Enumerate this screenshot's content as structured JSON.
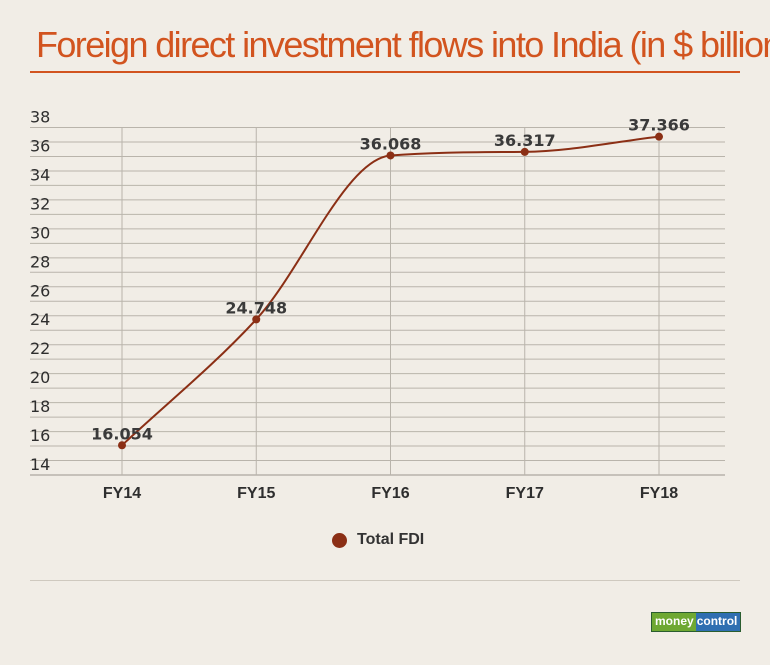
{
  "title": "Foreign direct investment flows into India (in $ billion)",
  "legend": {
    "label": "Total FDI",
    "color": "#8b2f15"
  },
  "logo": {
    "part1": "money",
    "part2": "control"
  },
  "chart_data": {
    "type": "line",
    "categories": [
      "FY14",
      "FY15",
      "FY16",
      "FY17",
      "FY18"
    ],
    "series": [
      {
        "name": "Total FDI",
        "values": [
          16.054,
          24.748,
          36.068,
          36.317,
          37.366
        ],
        "labels": [
          "16.054",
          "24.748",
          "36.068",
          "36.317",
          "37.366"
        ]
      }
    ],
    "yticks": [
      "14",
      "16",
      "18",
      "20",
      "22",
      "24",
      "26",
      "28",
      "30",
      "32",
      "34",
      "36",
      "38"
    ],
    "ylim": [
      14,
      38
    ],
    "grid": true,
    "legend_position": "bottom",
    "line_color": "#8b2f15"
  }
}
